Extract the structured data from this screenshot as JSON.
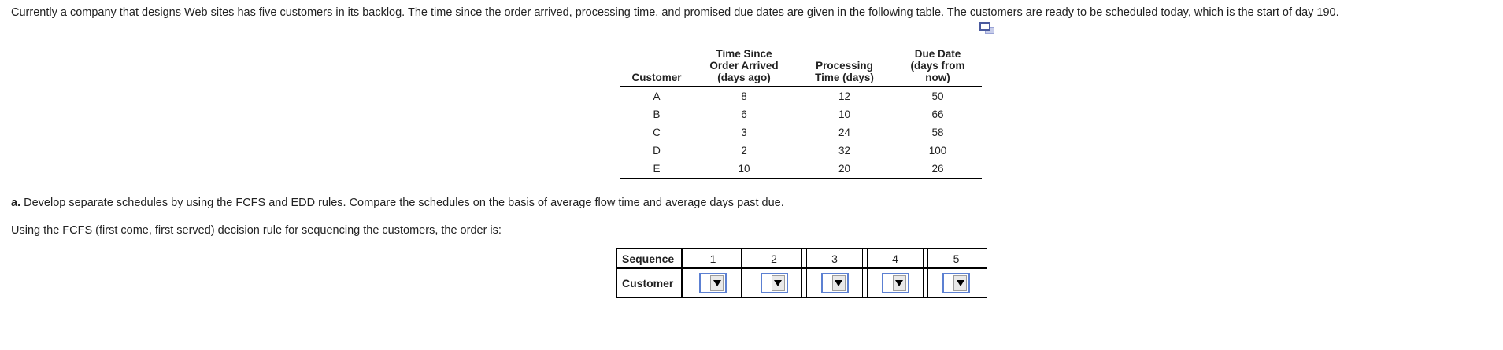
{
  "problem": {
    "intro": "Currently a company that designs Web sites has five customers in its backlog. The time since the order arrived, processing time, and promised due dates are given in the following table. The customers are ready to be scheduled today, which is the start of day 190.",
    "part_a_label": "a.",
    "part_a_text": " Develop separate schedules by using the FCFS and EDD rules. Compare the schedules on the basis of average flow time and average days past due.",
    "fcfs_line": "Using the FCFS (first come, first served) decision rule for sequencing the customers, the order is:"
  },
  "icons": {
    "popout": "copy-table-icon",
    "dropdown_arrow": "chevron-down-icon"
  },
  "colors": {
    "dropdown_border_blue": "#5c80d2",
    "popout_front_blue": "#4a5a9e",
    "popout_back_blue": "#c7cdea",
    "table_line": "#000000"
  },
  "data_table": {
    "columns": [
      {
        "lines": [
          "Customer"
        ]
      },
      {
        "lines": [
          "Time Since",
          "Order Arrived",
          "(days ago)"
        ]
      },
      {
        "lines": [
          "Processing",
          "Time (days)"
        ]
      },
      {
        "lines": [
          "Due Date",
          "(days from",
          "now)"
        ]
      }
    ],
    "rows": [
      [
        "A",
        "8",
        "12",
        "50"
      ],
      [
        "B",
        "6",
        "10",
        "66"
      ],
      [
        "C",
        "3",
        "24",
        "58"
      ],
      [
        "D",
        "2",
        "32",
        "100"
      ],
      [
        "E",
        "10",
        "20",
        "26"
      ]
    ]
  },
  "sequence_table": {
    "row1_label": "Sequence",
    "row2_label": "Customer",
    "cols": [
      "1",
      "2",
      "3",
      "4",
      "5"
    ],
    "dropdown_values": [
      "",
      "",
      "",
      "",
      ""
    ]
  }
}
